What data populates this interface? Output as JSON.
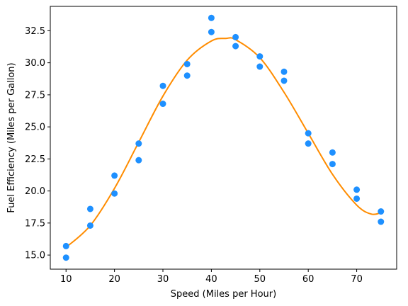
{
  "chart_data": {
    "type": "scatter",
    "title": "",
    "xlabel": "Speed (Miles per Hour)",
    "ylabel": "Fuel Efficiency (Miles per Gallon)",
    "xlim": [
      6.75,
      78.25
    ],
    "ylim": [
      13.9,
      34.4
    ],
    "xticks": [
      10,
      20,
      30,
      40,
      50,
      60,
      70
    ],
    "xtick_labels": [
      "10",
      "20",
      "30",
      "40",
      "50",
      "60",
      "70"
    ],
    "yticks": [
      15.0,
      17.5,
      20.0,
      22.5,
      25.0,
      27.5,
      30.0,
      32.5
    ],
    "ytick_labels": [
      "15.0",
      "17.5",
      "20.0",
      "22.5",
      "25.0",
      "27.5",
      "30.0",
      "32.5"
    ],
    "grid": false,
    "colors": {
      "points": "#1e90ff",
      "fit": "#ff8c00"
    },
    "series": [
      {
        "kind": "scatter",
        "x": [
          10,
          10,
          15,
          15,
          20,
          20,
          25,
          25,
          30,
          30,
          35,
          35,
          40,
          40,
          45,
          45,
          50,
          50,
          55,
          55,
          60,
          60,
          65,
          65,
          70,
          70,
          75,
          75
        ],
        "y": [
          15.7,
          14.8,
          18.6,
          17.3,
          21.2,
          19.8,
          23.7,
          22.4,
          28.2,
          26.8,
          29.9,
          29.0,
          33.5,
          32.4,
          32.0,
          31.3,
          30.5,
          29.7,
          29.3,
          28.6,
          24.5,
          23.7,
          23.0,
          22.1,
          20.1,
          19.4,
          18.4,
          17.6
        ]
      },
      {
        "kind": "line",
        "x": [
          10,
          15,
          20,
          25,
          30,
          35,
          40,
          43,
          45,
          50,
          55,
          60,
          65,
          70,
          73,
          75
        ],
        "y": [
          15.6,
          17.3,
          20.2,
          23.8,
          27.4,
          30.2,
          31.7,
          31.9,
          31.8,
          30.4,
          27.7,
          24.5,
          21.3,
          18.9,
          18.2,
          18.3
        ]
      }
    ]
  }
}
